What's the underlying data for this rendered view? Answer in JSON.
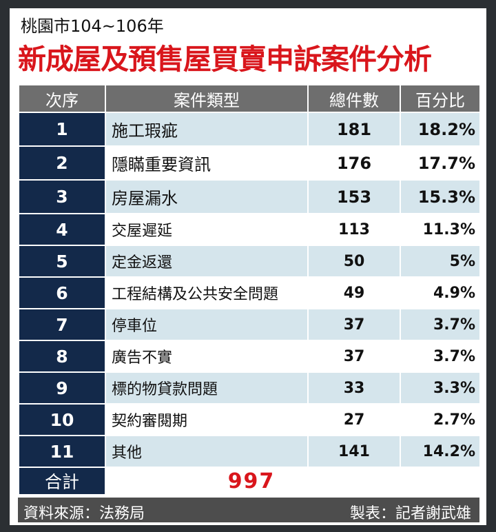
{
  "subtitle": "桃園市104~106年",
  "title": "新成屋及預售屋買賣申訴案件分析",
  "headers": {
    "rank": "次序",
    "type": "案件類型",
    "count": "總件數",
    "percent": "百分比"
  },
  "rows": [
    {
      "rank": "1",
      "type": "施工瑕疵",
      "count": "181",
      "percent": "18.2%"
    },
    {
      "rank": "2",
      "type": "隱瞞重要資訊",
      "count": "176",
      "percent": "17.7%"
    },
    {
      "rank": "3",
      "type": "房屋漏水",
      "count": "153",
      "percent": "15.3%"
    },
    {
      "rank": "4",
      "type": "交屋遲延",
      "count": "113",
      "percent": "11.3%"
    },
    {
      "rank": "5",
      "type": "定金返還",
      "count": "50",
      "percent": "5%"
    },
    {
      "rank": "6",
      "type": "工程結構及公共安全問題",
      "count": "49",
      "percent": "4.9%"
    },
    {
      "rank": "7",
      "type": "停車位",
      "count": "37",
      "percent": "3.7%"
    },
    {
      "rank": "8",
      "type": "廣告不實",
      "count": "37",
      "percent": "3.7%"
    },
    {
      "rank": "9",
      "type": "標的物貸款問題",
      "count": "33",
      "percent": "3.3%"
    },
    {
      "rank": "10",
      "type": "契約審閱期",
      "count": "27",
      "percent": "2.7%"
    },
    {
      "rank": "11",
      "type": "其他",
      "count": "141",
      "percent": "14.2%"
    }
  ],
  "total": {
    "label": "合計",
    "value": "997"
  },
  "footer": {
    "source": "資料來源：法務局",
    "author": "製表：記者謝武雄"
  },
  "colors": {
    "title_red": "#d9161c",
    "navy": "#13294a",
    "header_gray": "#6e6e6e",
    "row_blue": "#d5e5ec"
  }
}
